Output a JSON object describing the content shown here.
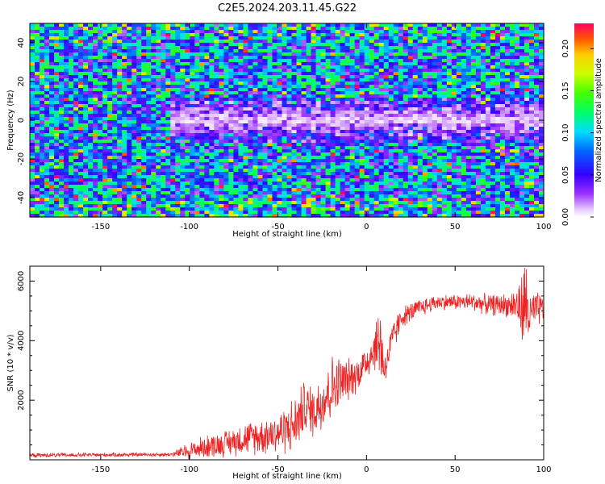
{
  "figure_title": "C2E5.2024.203.11.45.G22",
  "chart_data": [
    {
      "type": "heatmap",
      "title": "C2E5.2024.203.11.45.G22",
      "xlabel": "Height of straight line (km)",
      "ylabel": "Frequency (Hz)",
      "xlim": [
        -190,
        100
      ],
      "ylim": [
        -50,
        50
      ],
      "x_ticks": [
        "-150",
        "-100",
        "-50",
        "0",
        "50",
        "100"
      ],
      "x_tick_values": [
        -150,
        -100,
        -50,
        0,
        50,
        100
      ],
      "y_ticks": [
        "-40",
        "-20",
        "0",
        "20",
        "40"
      ],
      "y_tick_values": [
        -40,
        -20,
        0,
        20,
        40
      ],
      "colorbar": {
        "label": "Normalized spectral amplitude",
        "range": [
          0.0,
          0.23
        ],
        "ticks": [
          "0.00",
          "0.05",
          "0.10",
          "0.15",
          "0.20"
        ],
        "tick_values": [
          0.0,
          0.05,
          0.1,
          0.15,
          0.2
        ]
      },
      "description_of_field": {
        "low_amplitude_band_hz": [
          -12,
          12
        ],
        "low_amplitude_band_x_range_km": [
          -110,
          100
        ],
        "background_level_min": 0.02,
        "background_level_max": 0.14,
        "hotspot_max": 0.23
      }
    },
    {
      "type": "line",
      "title": "",
      "xlabel": "Height of straight line (km)",
      "ylabel": "SNR (10 * v/v)",
      "xlim": [
        -190,
        100
      ],
      "ylim": [
        0,
        6500
      ],
      "x_ticks": [
        "-150",
        "-100",
        "-50",
        "0",
        "50",
        "100"
      ],
      "x_tick_values": [
        -150,
        -100,
        -50,
        0,
        50,
        100
      ],
      "y_ticks": [
        "2000",
        "4000",
        "6000"
      ],
      "y_tick_values": [
        2000,
        4000,
        6000
      ],
      "series": [
        {
          "color": "#ee2222",
          "envelope_x": [
            -190,
            -110,
            -100,
            -90,
            -80,
            -70,
            -60,
            -50,
            -40,
            -35,
            -30,
            -25,
            -20,
            -15,
            -10,
            -5,
            0,
            5,
            8,
            10,
            15,
            20,
            30,
            40,
            50,
            60,
            70,
            80,
            85,
            88,
            90,
            92,
            95,
            100
          ],
          "envelope_mean": [
            150,
            180,
            300,
            450,
            550,
            700,
            800,
            900,
            1200,
            1800,
            1600,
            2000,
            2400,
            2600,
            2700,
            2900,
            3300,
            3800,
            4000,
            3000,
            4100,
            4800,
            5100,
            5300,
            5300,
            5300,
            5200,
            5200,
            5200,
            5000,
            5300,
            4800,
            5000,
            5100
          ],
          "envelope_spread": [
            80,
            80,
            350,
            450,
            500,
            600,
            700,
            800,
            1100,
            1000,
            1000,
            1200,
            1300,
            1000,
            800,
            700,
            700,
            900,
            1800,
            600,
            700,
            400,
            350,
            300,
            300,
            350,
            400,
            450,
            700,
            1500,
            1800,
            1000,
            700,
            600
          ]
        }
      ]
    }
  ]
}
